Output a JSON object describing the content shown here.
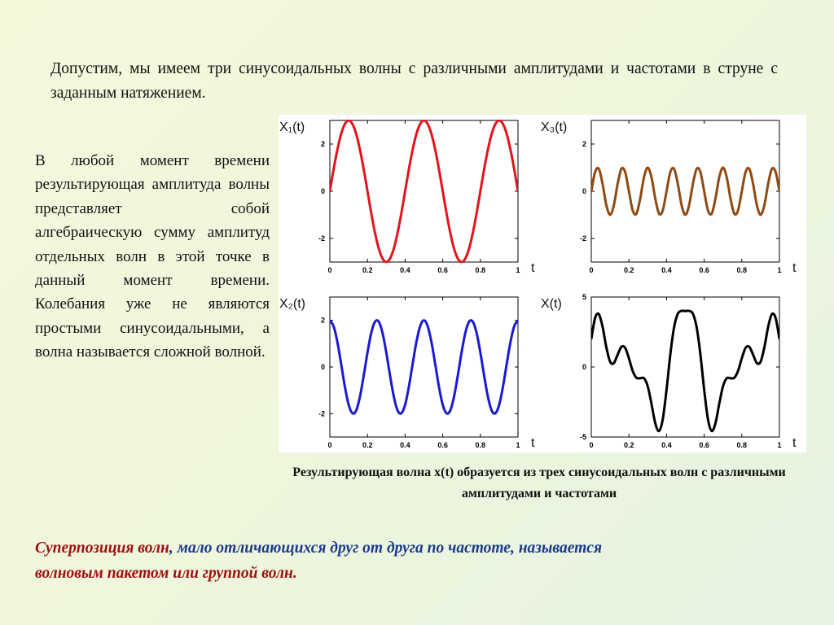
{
  "intro": "Допустим, мы имеем три синусоидальных волны с различными амплитудами и частотами в струне с заданным натяжением.",
  "side_text": "В любой момент времени результирующая амплитуда волны представляет собой алгебраическую сумму амплитуд отдельных волн в этой точке в данный момент времени. Колебания уже не являются простыми синусоидальными, а волна называется сложной волной.",
  "caption": "Результирующая волна x(t) образуется из трех синусоидальных волн с различными амплитудами и частотами",
  "conclusion": {
    "term": "Суперпозиция волн",
    "text": ", мало отличающихся друг от друга по частоте, называется",
    "term2": "волновым пакетом или группой волн."
  },
  "chart_data": [
    {
      "type": "line",
      "title": "X₁(t)",
      "xlabel": "t",
      "xlim": [
        0,
        1
      ],
      "xticks": [
        0,
        0.2,
        0.4,
        0.6,
        0.8,
        1
      ],
      "ylim": [
        -3,
        3
      ],
      "yticks": [
        -2,
        0,
        2
      ],
      "x": [
        0,
        0.02,
        0.04,
        0.06,
        0.08,
        0.1,
        0.12,
        0.14,
        0.16,
        0.18,
        0.2,
        0.22,
        0.24,
        0.26,
        0.28,
        0.3,
        0.32,
        0.34,
        0.36,
        0.38,
        0.4,
        0.42,
        0.44,
        0.46,
        0.48,
        0.5,
        0.52,
        0.54,
        0.56,
        0.58,
        0.6,
        0.62,
        0.64,
        0.66,
        0.68,
        0.7,
        0.72,
        0.74,
        0.76,
        0.78,
        0.8,
        0.82,
        0.84,
        0.86,
        0.88,
        0.9,
        0.92,
        0.94,
        0.96,
        0.98,
        1
      ],
      "series": [
        {
          "name": "X₁(t)",
          "color": "#e3141c",
          "values": [
            0,
            0.93,
            1.76,
            2.43,
            2.85,
            3,
            2.85,
            2.43,
            1.76,
            0.93,
            0,
            -0.93,
            -1.76,
            -2.43,
            -2.85,
            -3,
            -2.85,
            -2.43,
            -1.76,
            -0.93,
            0,
            0.93,
            1.76,
            2.43,
            2.85,
            3,
            2.85,
            2.43,
            1.76,
            0.93,
            0,
            -0.93,
            -1.76,
            -2.43,
            -2.85,
            -3,
            -2.85,
            -2.43,
            -1.76,
            -0.93,
            0,
            0.93,
            1.76,
            2.43,
            2.85,
            3,
            2.85,
            2.43,
            1.76,
            0.93,
            0
          ]
        }
      ]
    },
    {
      "type": "line",
      "title": "X₂(t)",
      "xlabel": "t",
      "xlim": [
        0,
        1
      ],
      "xticks": [
        0,
        0.2,
        0.4,
        0.6,
        0.8,
        1
      ],
      "ylim": [
        -3,
        3
      ],
      "yticks": [
        -2,
        0,
        2
      ],
      "x": [
        0,
        0.02,
        0.04,
        0.06,
        0.08,
        0.1,
        0.12,
        0.14,
        0.16,
        0.18,
        0.2,
        0.22,
        0.24,
        0.26,
        0.28,
        0.3,
        0.32,
        0.34,
        0.36,
        0.38,
        0.4,
        0.42,
        0.44,
        0.46,
        0.48,
        0.5,
        0.52,
        0.54,
        0.56,
        0.58,
        0.6,
        0.62,
        0.64,
        0.66,
        0.68,
        0.7,
        0.72,
        0.74,
        0.76,
        0.78,
        0.8,
        0.82,
        0.84,
        0.86,
        0.88,
        0.9,
        0.92,
        0.94,
        0.96,
        0.98,
        1
      ],
      "series": [
        {
          "name": "X₂(t)",
          "color": "#1a1ad2",
          "values": [
            2,
            1.75,
            1.07,
            0.13,
            -0.85,
            -1.62,
            -1.98,
            -1.86,
            -1.27,
            -0.37,
            0.62,
            1.46,
            1.94,
            1.94,
            1.46,
            0.62,
            -0.37,
            -1.27,
            -1.86,
            -1.98,
            -1.62,
            -0.85,
            0.13,
            1.07,
            1.75,
            2,
            1.75,
            1.07,
            0.13,
            -0.85,
            -1.62,
            -1.98,
            -1.86,
            -1.27,
            -0.37,
            0.62,
            1.46,
            1.94,
            1.94,
            1.46,
            0.62,
            -0.37,
            -1.27,
            -1.86,
            -1.98,
            -1.62,
            -0.85,
            0.13,
            1.07,
            1.75,
            2
          ]
        }
      ]
    },
    {
      "type": "line",
      "title": "X₃(t)",
      "xlabel": "t",
      "xlim": [
        0,
        1
      ],
      "xticks": [
        0,
        0.2,
        0.4,
        0.6,
        0.8,
        1
      ],
      "ylim": [
        -3,
        3
      ],
      "yticks": [
        -2,
        0,
        2
      ],
      "x": [
        0,
        0.02,
        0.04,
        0.06,
        0.08,
        0.1,
        0.12,
        0.14,
        0.16,
        0.18,
        0.2,
        0.22,
        0.24,
        0.26,
        0.28,
        0.3,
        0.32,
        0.34,
        0.36,
        0.38,
        0.4,
        0.42,
        0.44,
        0.46,
        0.48,
        0.5,
        0.52,
        0.54,
        0.56,
        0.58,
        0.6,
        0.62,
        0.64,
        0.66,
        0.68,
        0.7,
        0.72,
        0.74,
        0.76,
        0.78,
        0.8,
        0.82,
        0.84,
        0.86,
        0.88,
        0.9,
        0.92,
        0.94,
        0.96,
        0.98,
        1
      ],
      "series": [
        {
          "name": "X₃(t)",
          "color": "#8e4a12",
          "values": [
            0,
            0.81,
            0.95,
            0.31,
            -0.59,
            -1,
            -0.59,
            0.31,
            0.95,
            0.81,
            0,
            -0.81,
            -0.95,
            -0.31,
            0.59,
            1,
            0.59,
            -0.31,
            -0.95,
            -0.81,
            0,
            0.81,
            0.95,
            0.31,
            -0.59,
            -1,
            -0.59,
            0.31,
            0.95,
            0.81,
            0,
            -0.81,
            -0.95,
            -0.31,
            0.59,
            1,
            0.59,
            -0.31,
            -0.95,
            -0.81,
            0,
            0.81,
            0.95,
            0.31,
            -0.59,
            -1,
            -0.59,
            0.31,
            0.95,
            0.81,
            0
          ]
        }
      ]
    },
    {
      "type": "line",
      "title": "X(t)",
      "xlabel": "t",
      "xlim": [
        0,
        1
      ],
      "xticks": [
        0,
        0.2,
        0.4,
        0.6,
        0.8,
        1
      ],
      "ylim": [
        -5,
        5
      ],
      "yticks": [
        -5,
        0,
        5
      ],
      "x": [
        0,
        0.02,
        0.04,
        0.06,
        0.08,
        0.1,
        0.12,
        0.14,
        0.16,
        0.18,
        0.2,
        0.22,
        0.24,
        0.26,
        0.28,
        0.3,
        0.32,
        0.34,
        0.36,
        0.38,
        0.4,
        0.42,
        0.44,
        0.46,
        0.48,
        0.5,
        0.52,
        0.54,
        0.56,
        0.58,
        0.6,
        0.62,
        0.64,
        0.66,
        0.68,
        0.7,
        0.72,
        0.74,
        0.76,
        0.78,
        0.8,
        0.82,
        0.84,
        0.86,
        0.88,
        0.9,
        0.92,
        0.94,
        0.96,
        0.98,
        1
      ],
      "series": [
        {
          "name": "X(t)",
          "color": "#000000",
          "values": [
            2,
            3.49,
            3.78,
            2.87,
            1.41,
            0.38,
            0.28,
            0.88,
            1.44,
            1.37,
            0.62,
            -0.28,
            -0.77,
            -0.8,
            -0.8,
            -1.38,
            -2.63,
            -4.01,
            -4.57,
            -3.72,
            -1.62,
            0.89,
            2.84,
            3.81,
            4.01,
            4,
            4.01,
            3.81,
            2.84,
            0.89,
            -1.62,
            -3.72,
            -4.57,
            -4.01,
            -2.63,
            -1.38,
            -0.8,
            -0.8,
            -0.77,
            -0.28,
            0.62,
            1.37,
            1.44,
            0.88,
            0.28,
            0.38,
            1.41,
            2.87,
            3.78,
            3.49,
            2
          ]
        }
      ]
    }
  ]
}
